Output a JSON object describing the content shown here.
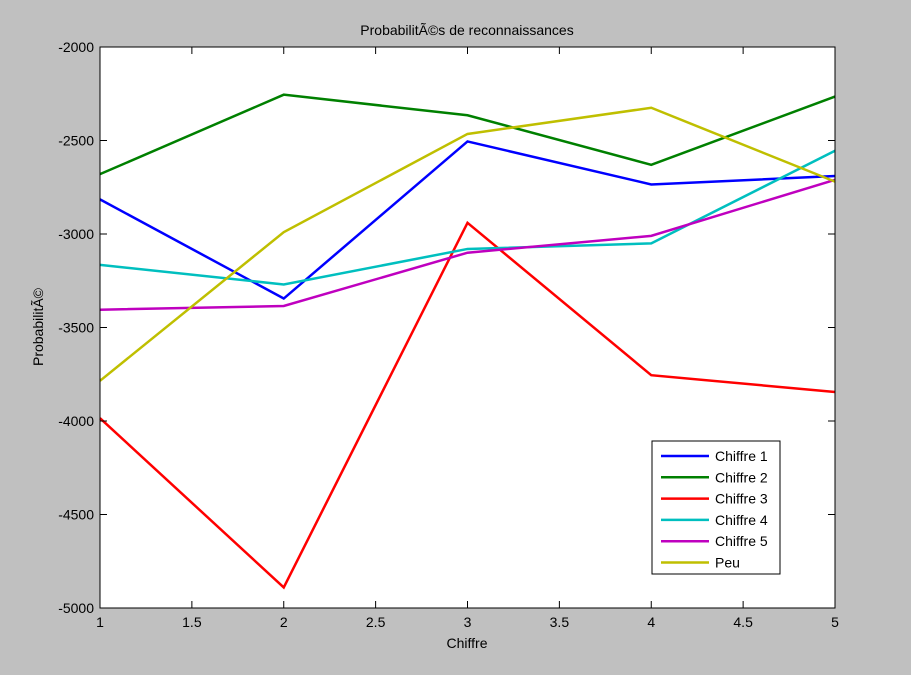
{
  "chart_data": {
    "type": "line",
    "title": "ProbabilitÃ©s de reconnaissances",
    "xlabel": "Chiffre",
    "ylabel": "ProbabilitÃ©",
    "xlim": [
      1,
      5
    ],
    "ylim": [
      -5000,
      -2000
    ],
    "x": [
      1,
      2,
      3,
      4,
      5
    ],
    "xticks": [
      "1",
      "1.5",
      "2",
      "2.5",
      "3",
      "3.5",
      "4",
      "4.5",
      "5"
    ],
    "yticks": [
      "-2000",
      "-2500",
      "-3000",
      "-3500",
      "-4000",
      "-4500",
      "-5000"
    ],
    "grid": false,
    "legend_position": "bottom-right",
    "series": [
      {
        "name": "Chiffre 1",
        "color": "#0000ff",
        "values": [
          -2815,
          -3345,
          -2505,
          -2735,
          -2690
        ]
      },
      {
        "name": "Chiffre 2",
        "color": "#008000",
        "values": [
          -2680,
          -2255,
          -2365,
          -2630,
          -2265
        ]
      },
      {
        "name": "Chiffre 3",
        "color": "#ff0000",
        "values": [
          -3985,
          -4890,
          -2940,
          -3755,
          -3845
        ]
      },
      {
        "name": "Chiffre 4",
        "color": "#00bfbf",
        "values": [
          -3165,
          -3270,
          -3080,
          -3050,
          -2555
        ]
      },
      {
        "name": "Chiffre 5",
        "color": "#bf00bf",
        "values": [
          -3405,
          -3385,
          -3100,
          -3010,
          -2710
        ]
      },
      {
        "name": "Peu",
        "color": "#bfbf00",
        "values": [
          -3785,
          -2990,
          -2465,
          -2325,
          -2720
        ]
      }
    ]
  }
}
